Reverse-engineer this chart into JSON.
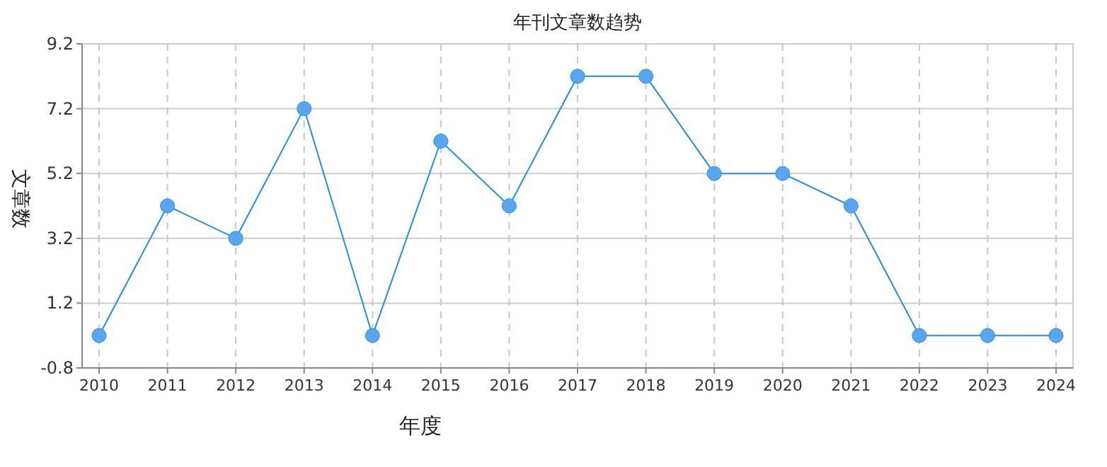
{
  "chart_data": {
    "type": "line",
    "title": "年刊文章数趋势",
    "xlabel": "年度",
    "ylabel": "文章数",
    "categories": [
      "2010",
      "2011",
      "2012",
      "2013",
      "2014",
      "2015",
      "2016",
      "2017",
      "2018",
      "2019",
      "2020",
      "2021",
      "2022",
      "2023",
      "2024"
    ],
    "series": [
      {
        "color": "#1e90e8",
        "values": [
          0.2,
          4.2,
          3.2,
          7.2,
          0.2,
          6.2,
          4.2,
          8.2,
          8.2,
          5.2,
          5.2,
          4.2,
          0.2,
          0.2,
          0.2
        ]
      }
    ],
    "ylim": [
      -0.8,
      9.2
    ],
    "yticks": [
      -0.8,
      1.2,
      3.2,
      5.2,
      7.2,
      9.2
    ],
    "grid": true,
    "marker": "circle",
    "line_style": "solid"
  }
}
